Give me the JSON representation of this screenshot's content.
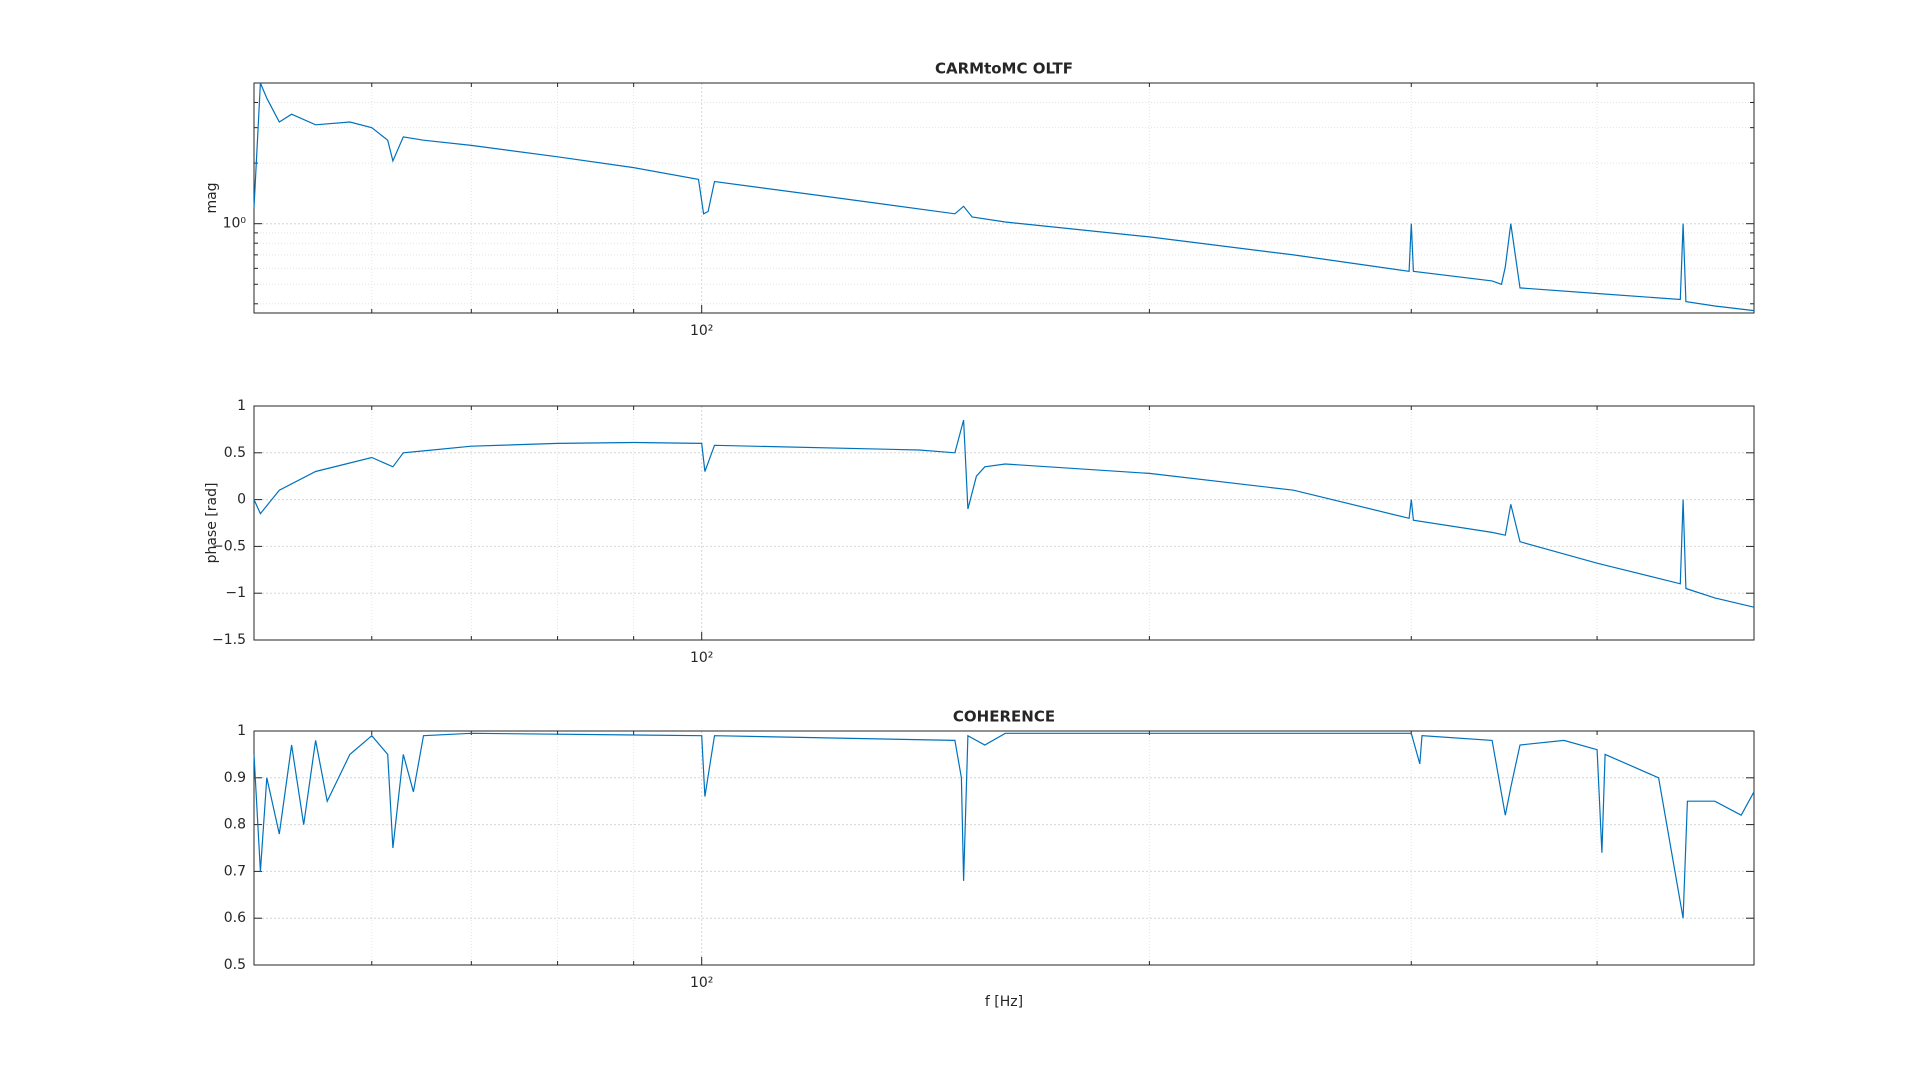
{
  "chart_data": [
    {
      "type": "line",
      "title": "CARMtoMC OLTF",
      "ylabel": "mag",
      "xscale": "log",
      "yscale": "log",
      "grid": true,
      "xlim": [
        50,
        510
      ],
      "xticks": [
        {
          "value": 100,
          "label": "10²"
        }
      ],
      "xminorticks": [
        60,
        70,
        80,
        90,
        200,
        300,
        400
      ],
      "ylim": [
        0.36,
        5
      ],
      "yticks": [
        {
          "value": 1,
          "label": "10⁰"
        }
      ],
      "yminorticks": [
        0.4,
        0.5,
        0.6,
        0.7,
        0.8,
        0.9,
        2,
        3,
        4
      ],
      "series": [
        {
          "color": "#0072bd",
          "x": [
            50,
            50.5,
            51,
            52,
            53,
            55,
            58,
            60,
            61.5,
            62,
            63,
            65,
            70,
            80,
            90,
            99.5,
            100.3,
            101,
            102,
            120,
            148,
            150,
            152,
            160,
            200,
            250,
            299,
            300,
            301,
            340,
            345,
            347,
            350,
            355,
            400,
            455,
            457,
            459,
            480,
            510
          ],
          "values": [
            1.2,
            5.0,
            4.2,
            3.2,
            3.5,
            3.1,
            3.2,
            3.0,
            2.6,
            2.05,
            2.7,
            2.6,
            2.45,
            2.15,
            1.9,
            1.66,
            1.12,
            1.15,
            1.62,
            1.38,
            1.12,
            1.22,
            1.08,
            1.02,
            0.86,
            0.7,
            0.58,
            1.0,
            0.58,
            0.52,
            0.5,
            0.61,
            1.0,
            0.48,
            0.45,
            0.42,
            1.0,
            0.41,
            0.39,
            0.37
          ]
        }
      ]
    },
    {
      "type": "line",
      "ylabel": "phase [rad]",
      "xscale": "log",
      "grid": true,
      "xlim": [
        50,
        510
      ],
      "xticks": [
        {
          "value": 100,
          "label": "10²"
        }
      ],
      "xminorticks": [
        60,
        70,
        80,
        90,
        200,
        300,
        400
      ],
      "ylim": [
        -1.5,
        1
      ],
      "yticks": [
        {
          "value": -1.5,
          "label": "−1.5"
        },
        {
          "value": -1,
          "label": "−1"
        },
        {
          "value": -0.5,
          "label": "−0.5"
        },
        0,
        0.5,
        1
      ],
      "series": [
        {
          "color": "#0072bd",
          "x": [
            50,
            50.5,
            52,
            55,
            60,
            62,
            63,
            65,
            70,
            80,
            90,
            100,
            100.5,
            102,
            140,
            148,
            150,
            151,
            153,
            155,
            160,
            200,
            250,
            299,
            300,
            301,
            340,
            347,
            350,
            355,
            400,
            455,
            457,
            459,
            480,
            510
          ],
          "values": [
            0,
            -0.15,
            0.1,
            0.3,
            0.45,
            0.35,
            0.5,
            0.52,
            0.57,
            0.6,
            0.61,
            0.6,
            0.3,
            0.58,
            0.53,
            0.5,
            0.85,
            -0.1,
            0.25,
            0.35,
            0.38,
            0.28,
            0.1,
            -0.2,
            0,
            -0.22,
            -0.35,
            -0.38,
            -0.05,
            -0.45,
            -0.68,
            -0.9,
            0,
            -0.95,
            -1.05,
            -1.15
          ]
        }
      ]
    },
    {
      "type": "line",
      "title": "COHERENCE",
      "xlabel": "f [Hz]",
      "xscale": "log",
      "grid": true,
      "xlim": [
        50,
        510
      ],
      "xticks": [
        {
          "value": 100,
          "label": "10²"
        }
      ],
      "xminorticks": [
        60,
        70,
        80,
        90,
        200,
        300,
        400
      ],
      "ylim": [
        0.5,
        1
      ],
      "yticks": [
        0.5,
        0.6,
        0.7,
        0.8,
        0.9,
        1
      ],
      "series": [
        {
          "color": "#0072bd",
          "x": [
            50,
            50.5,
            51,
            52,
            53,
            54,
            55,
            56,
            58,
            60,
            61.5,
            62,
            63,
            64,
            65,
            70,
            100,
            100.5,
            102,
            148,
            149.5,
            150,
            151,
            155,
            160,
            300,
            304,
            305,
            340,
            347,
            350,
            355,
            380,
            400,
            403,
            405,
            440,
            457,
            460,
            480,
            500,
            510
          ],
          "values": [
            0.95,
            0.7,
            0.9,
            0.78,
            0.97,
            0.8,
            0.98,
            0.85,
            0.95,
            0.99,
            0.95,
            0.75,
            0.95,
            0.87,
            0.99,
            0.995,
            0.99,
            0.86,
            0.99,
            0.98,
            0.9,
            0.68,
            0.99,
            0.97,
            0.995,
            0.995,
            0.93,
            0.99,
            0.98,
            0.82,
            0.88,
            0.97,
            0.98,
            0.96,
            0.74,
            0.95,
            0.9,
            0.6,
            0.85,
            0.85,
            0.82,
            0.87
          ]
        }
      ]
    }
  ]
}
